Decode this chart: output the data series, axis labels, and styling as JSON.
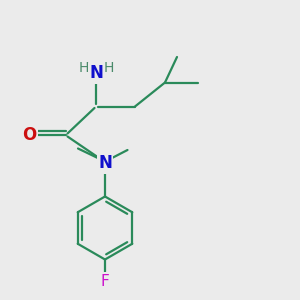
{
  "bg_color": "#ebebeb",
  "atom_colors": {
    "C": "#2a8a5a",
    "N": "#1010cc",
    "O": "#cc1010",
    "F": "#cc10cc",
    "H": "#4a8a6a"
  },
  "bond_color": "#2a8a5a",
  "line_width": 1.6,
  "font_size": 10.5
}
